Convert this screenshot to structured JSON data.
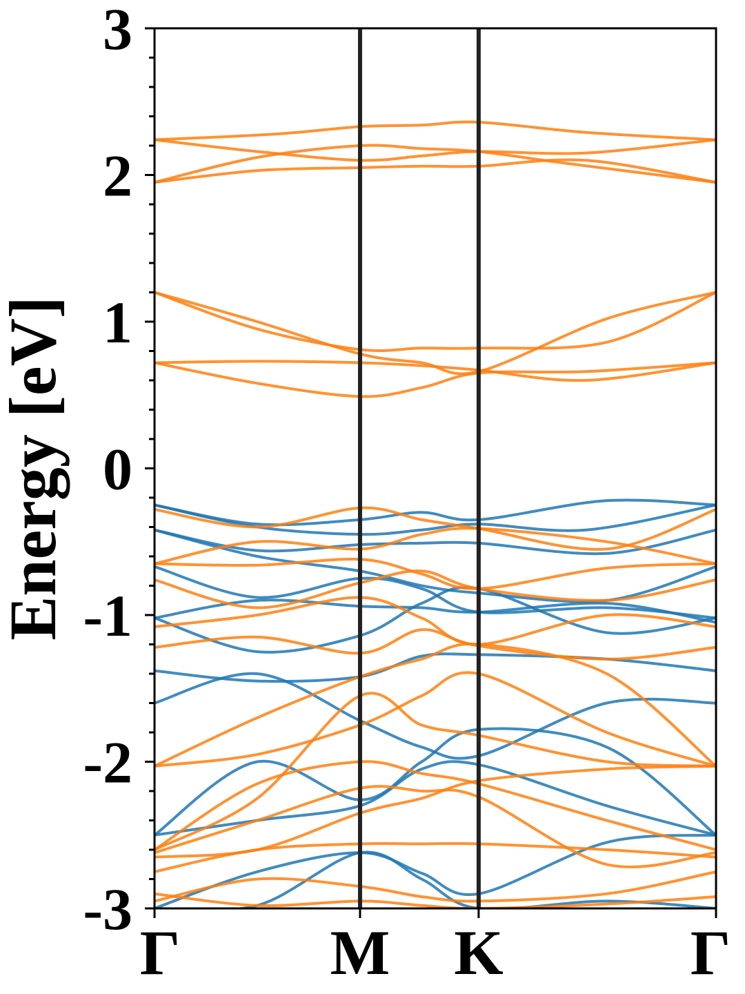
{
  "chart_data": {
    "type": "line",
    "title": "",
    "xlabel": "",
    "ylabel": "Energy [eV]",
    "ylim": [
      -3,
      3
    ],
    "y_ticks": [
      "-3",
      "-2",
      "-1",
      "0",
      "1",
      "2",
      "3"
    ],
    "y_tick_values": [
      -3,
      -2,
      -1,
      0,
      1,
      2,
      3
    ],
    "y_minor_step": 0.2,
    "x_ticks": [
      "Γ",
      "M",
      "K",
      "Γ"
    ],
    "x_tick_positions": [
      0,
      1,
      1.577,
      2.732
    ],
    "xlim": [
      0,
      2.732
    ],
    "grid": false,
    "legend": "none",
    "colors": {
      "spin_1": "#1f77b4",
      "spin_2": "#ff7f0e",
      "divider": "#222222"
    },
    "series": [
      {
        "color": "spin_2",
        "x": [
          0,
          0.6,
          1,
          1.3,
          1.577,
          2.1,
          2.732
        ],
        "y": [
          2.24,
          2.28,
          2.33,
          2.34,
          2.36,
          2.29,
          2.24
        ]
      },
      {
        "color": "spin_2",
        "x": [
          0,
          0.5,
          1,
          1.3,
          1.577,
          2.1,
          2.732
        ],
        "y": [
          2.24,
          2.16,
          2.1,
          2.13,
          2.16,
          2.15,
          2.24
        ]
      },
      {
        "color": "spin_2",
        "x": [
          0,
          0.5,
          1,
          1.3,
          1.577,
          2.0,
          2.732
        ],
        "y": [
          1.95,
          2.12,
          2.2,
          2.18,
          2.16,
          2.08,
          1.95
        ]
      },
      {
        "color": "spin_2",
        "x": [
          0,
          0.5,
          1,
          1.3,
          1.577,
          2.1,
          2.732
        ],
        "y": [
          1.95,
          2.03,
          2.05,
          2.06,
          2.06,
          2.1,
          1.95
        ]
      },
      {
        "color": "spin_2",
        "x": [
          0,
          0.5,
          1,
          1.3,
          1.577,
          2.2,
          2.732
        ],
        "y": [
          1.2,
          0.95,
          0.81,
          0.82,
          0.82,
          0.86,
          1.2
        ]
      },
      {
        "color": "spin_2",
        "x": [
          0,
          0.5,
          1,
          1.3,
          1.577,
          2.2,
          2.732
        ],
        "y": [
          1.2,
          1.0,
          0.78,
          0.72,
          0.66,
          1.02,
          1.2
        ]
      },
      {
        "color": "spin_2",
        "x": [
          0,
          0.5,
          1,
          1.3,
          1.577,
          2.1,
          2.732
        ],
        "y": [
          0.72,
          0.73,
          0.72,
          0.7,
          0.67,
          0.6,
          0.72
        ]
      },
      {
        "color": "spin_2",
        "x": [
          0,
          0.5,
          1,
          1.3,
          1.577,
          2.1,
          2.732
        ],
        "y": [
          0.72,
          0.58,
          0.49,
          0.55,
          0.65,
          0.66,
          0.72
        ]
      },
      {
        "color": "spin_1",
        "x": [
          0,
          0.5,
          1,
          1.3,
          1.577,
          2.2,
          2.732
        ],
        "y": [
          -0.25,
          -0.38,
          -0.35,
          -0.3,
          -0.35,
          -0.22,
          -0.25
        ]
      },
      {
        "color": "spin_1",
        "x": [
          0,
          0.5,
          1,
          1.3,
          1.577,
          2.1,
          2.732
        ],
        "y": [
          -0.25,
          -0.4,
          -0.45,
          -0.42,
          -0.38,
          -0.42,
          -0.25
        ]
      },
      {
        "color": "spin_1",
        "x": [
          0,
          0.5,
          1,
          1.3,
          1.577,
          2.2,
          2.732
        ],
        "y": [
          -0.42,
          -0.56,
          -0.52,
          -0.51,
          -0.51,
          -0.58,
          -0.42
        ]
      },
      {
        "color": "spin_1",
        "x": [
          0,
          0.5,
          1,
          1.3,
          1.577,
          2.2,
          2.732
        ],
        "y": [
          -0.42,
          -0.6,
          -0.7,
          -0.8,
          -0.85,
          -0.9,
          -0.67
        ]
      },
      {
        "color": "spin_1",
        "x": [
          0,
          0.5,
          1,
          1.3,
          1.577,
          2.2,
          2.732
        ],
        "y": [
          -0.67,
          -0.88,
          -0.75,
          -0.82,
          -0.98,
          -0.95,
          -1.02
        ]
      },
      {
        "color": "spin_1",
        "x": [
          0,
          0.5,
          1,
          1.3,
          1.577,
          2.2,
          2.732
        ],
        "y": [
          -1.02,
          -0.9,
          -0.94,
          -0.95,
          -0.98,
          -0.92,
          -1.05
        ]
      },
      {
        "color": "spin_1",
        "x": [
          0,
          0.5,
          1,
          1.3,
          1.577,
          2.2,
          2.732
        ],
        "y": [
          -1.02,
          -1.25,
          -1.14,
          -0.92,
          -0.82,
          -1.12,
          -1.02
        ]
      },
      {
        "color": "spin_1",
        "x": [
          0,
          0.5,
          1,
          1.3,
          1.577,
          2.2,
          2.732
        ],
        "y": [
          -1.38,
          -1.45,
          -1.42,
          -1.28,
          -1.27,
          -1.3,
          -1.38
        ]
      },
      {
        "color": "spin_1",
        "x": [
          0,
          0.5,
          1,
          1.3,
          1.577,
          2.2,
          2.732
        ],
        "y": [
          -1.6,
          -1.4,
          -1.72,
          -1.9,
          -1.96,
          -1.6,
          -1.6
        ]
      },
      {
        "color": "spin_1",
        "x": [
          0,
          0.5,
          1,
          1.3,
          1.577,
          2.2,
          2.732
        ],
        "y": [
          -2.5,
          -2.0,
          -2.26,
          -2.0,
          -1.78,
          -1.9,
          -2.5
        ]
      },
      {
        "color": "spin_1",
        "x": [
          0,
          0.5,
          1,
          1.3,
          1.577,
          2.2,
          2.732
        ],
        "y": [
          -2.5,
          -2.4,
          -2.3,
          -2.05,
          -2.02,
          -2.3,
          -2.5
        ]
      },
      {
        "color": "spin_1",
        "x": [
          0,
          0.5,
          1,
          1.3,
          1.577,
          2.2,
          2.732
        ],
        "y": [
          -3.0,
          -2.75,
          -2.62,
          -2.76,
          -2.9,
          -2.55,
          -2.5
        ]
      },
      {
        "color": "spin_1",
        "x": [
          0,
          0.5,
          1,
          1.3,
          1.577,
          2.2,
          2.732
        ],
        "y": [
          -3.0,
          -2.98,
          -2.62,
          -2.8,
          -3.0,
          -2.95,
          -3.0
        ]
      },
      {
        "color": "spin_2",
        "x": [
          0,
          0.5,
          1,
          1.3,
          1.577,
          2.2,
          2.732
        ],
        "y": [
          -0.28,
          -0.4,
          -0.27,
          -0.35,
          -0.41,
          -0.55,
          -0.28
        ]
      },
      {
        "color": "spin_2",
        "x": [
          0,
          0.5,
          1,
          1.3,
          1.577,
          2.2,
          2.732
        ],
        "y": [
          -0.65,
          -0.5,
          -0.55,
          -0.45,
          -0.41,
          -0.5,
          -0.65
        ]
      },
      {
        "color": "spin_2",
        "x": [
          0,
          0.5,
          1,
          1.3,
          1.577,
          2.2,
          2.732
        ],
        "y": [
          -0.65,
          -0.66,
          -0.62,
          -0.72,
          -0.82,
          -0.68,
          -0.65
        ]
      },
      {
        "color": "spin_2",
        "x": [
          0,
          0.5,
          1,
          1.3,
          1.577,
          2.2,
          2.732
        ],
        "y": [
          -0.76,
          -0.95,
          -0.78,
          -0.7,
          -0.82,
          -0.9,
          -0.76
        ]
      },
      {
        "color": "spin_2",
        "x": [
          0,
          0.5,
          1,
          1.3,
          1.577,
          2.2,
          2.732
        ],
        "y": [
          -1.08,
          -1.0,
          -0.88,
          -1.02,
          -1.2,
          -1.0,
          -1.08
        ]
      },
      {
        "color": "spin_2",
        "x": [
          0,
          0.5,
          1,
          1.3,
          1.577,
          2.2,
          2.732
        ],
        "y": [
          -1.22,
          -1.15,
          -1.26,
          -1.1,
          -1.21,
          -1.3,
          -1.22
        ]
      },
      {
        "color": "spin_2",
        "x": [
          0,
          0.5,
          1,
          1.3,
          1.577,
          2.2,
          2.732
        ],
        "y": [
          -2.03,
          -1.7,
          -1.42,
          -1.3,
          -1.2,
          -1.4,
          -2.03
        ]
      },
      {
        "color": "spin_2",
        "x": [
          0,
          0.5,
          1,
          1.3,
          1.577,
          2.2,
          2.732
        ],
        "y": [
          -2.03,
          -1.95,
          -1.75,
          -1.55,
          -1.4,
          -1.8,
          -2.03
        ]
      },
      {
        "color": "spin_2",
        "x": [
          0,
          0.5,
          1,
          1.3,
          1.577,
          2.2,
          2.732
        ],
        "y": [
          -2.6,
          -2.25,
          -1.55,
          -1.75,
          -1.82,
          -2.0,
          -2.03
        ]
      },
      {
        "color": "spin_2",
        "x": [
          0,
          0.5,
          1,
          1.3,
          1.577,
          2.2,
          2.732
        ],
        "y": [
          -2.6,
          -2.15,
          -2.0,
          -2.08,
          -2.15,
          -2.4,
          -2.6
        ]
      },
      {
        "color": "spin_2",
        "x": [
          0,
          0.5,
          1,
          1.3,
          1.577,
          2.2,
          2.732
        ],
        "y": [
          -2.62,
          -2.4,
          -2.18,
          -2.2,
          -2.24,
          -2.7,
          -2.62
        ]
      },
      {
        "color": "spin_2",
        "x": [
          0,
          0.5,
          1,
          1.3,
          1.577,
          2.2,
          2.732
        ],
        "y": [
          -2.65,
          -2.6,
          -2.35,
          -2.25,
          -2.13,
          -2.05,
          -2.03
        ]
      },
      {
        "color": "spin_2",
        "x": [
          0,
          0.5,
          1,
          1.3,
          1.577,
          2.2,
          2.732
        ],
        "y": [
          -2.75,
          -2.6,
          -2.56,
          -2.56,
          -2.56,
          -2.6,
          -2.65
        ]
      },
      {
        "color": "spin_2",
        "x": [
          0,
          0.5,
          1,
          1.3,
          1.577,
          2.2,
          2.732
        ],
        "y": [
          -2.95,
          -2.8,
          -2.85,
          -2.92,
          -2.95,
          -2.9,
          -2.75
        ]
      },
      {
        "color": "spin_2",
        "x": [
          0,
          0.5,
          1,
          1.3,
          1.577,
          2.2,
          2.732
        ],
        "y": [
          -2.9,
          -2.98,
          -2.95,
          -2.98,
          -3.0,
          -2.97,
          -2.92
        ]
      }
    ]
  }
}
